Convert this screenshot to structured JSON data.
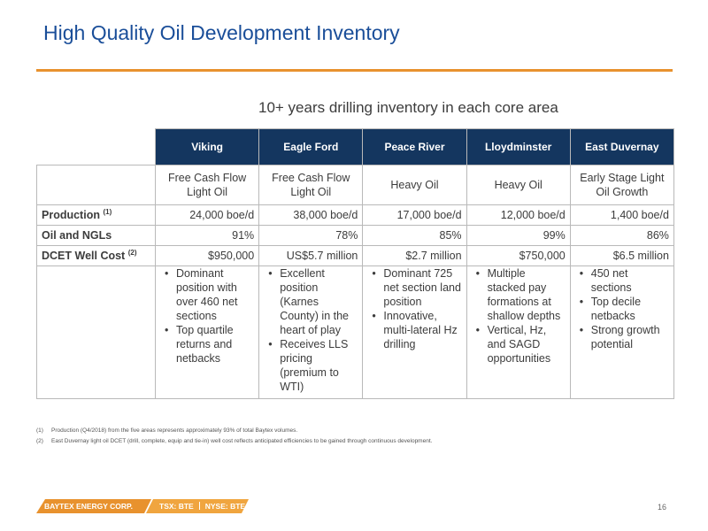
{
  "title": "High Quality Oil Development Inventory",
  "subtitle": "10+ years drilling inventory in each core area",
  "table": {
    "columns": [
      "Viking",
      "Eagle Ford",
      "Peace River",
      "Lloydminster",
      "East Duvernay"
    ],
    "types": [
      [
        "Free Cash Flow",
        "Light Oil"
      ],
      [
        "Free Cash Flow",
        "Light Oil"
      ],
      [
        "Heavy Oil"
      ],
      [
        "Heavy Oil"
      ],
      [
        "Early Stage Light",
        "Oil Growth"
      ]
    ],
    "rows": [
      {
        "label": "Production",
        "note": "(1)",
        "values": [
          "24,000 boe/d",
          "38,000 boe/d",
          "17,000 boe/d",
          "12,000 boe/d",
          "1,400 boe/d"
        ]
      },
      {
        "label": "Oil and NGLs",
        "note": "",
        "values": [
          "91%",
          "78%",
          "85%",
          "99%",
          "86%"
        ]
      },
      {
        "label": "DCET Well Cost",
        "note": "(2)",
        "values": [
          "$950,000",
          "US$5.7 million",
          "$2.7 million",
          "$750,000",
          "$6.5 million"
        ]
      }
    ],
    "descriptions": [
      [
        "Dominant position with over 460 net sections",
        "Top quartile returns and netbacks"
      ],
      [
        "Excellent position (Karnes County) in the heart of play",
        "Receives LLS pricing (premium to WTI)"
      ],
      [
        "Dominant 725 net section land position",
        "Innovative, multi-lateral Hz drilling"
      ],
      [
        "Multiple stacked pay formations at shallow depths",
        "Vertical, Hz, and SAGD opportunities"
      ],
      [
        "450 net sections",
        "Top decile netbacks",
        "Strong growth potential"
      ]
    ]
  },
  "footnotes": [
    {
      "mark": "(1)",
      "text": "Production (Q4/2018) from the five areas represents approximately 93% of total Baytex volumes."
    },
    {
      "mark": "(2)",
      "text": "East Duvernay light oil DCET (drill, complete, equip and tie-in) well cost reflects anticipated efficiencies to be gained through continuous development."
    }
  ],
  "footer": {
    "company": "BAYTEX ENERGY CORP.",
    "ticker_tsx": "TSX: BTE",
    "ticker_nyse": "NYSE: BTE",
    "page_number": "16"
  },
  "colors": {
    "title": "#1a4e99",
    "accent": "#e8922e",
    "header_bg": "#14365f"
  }
}
